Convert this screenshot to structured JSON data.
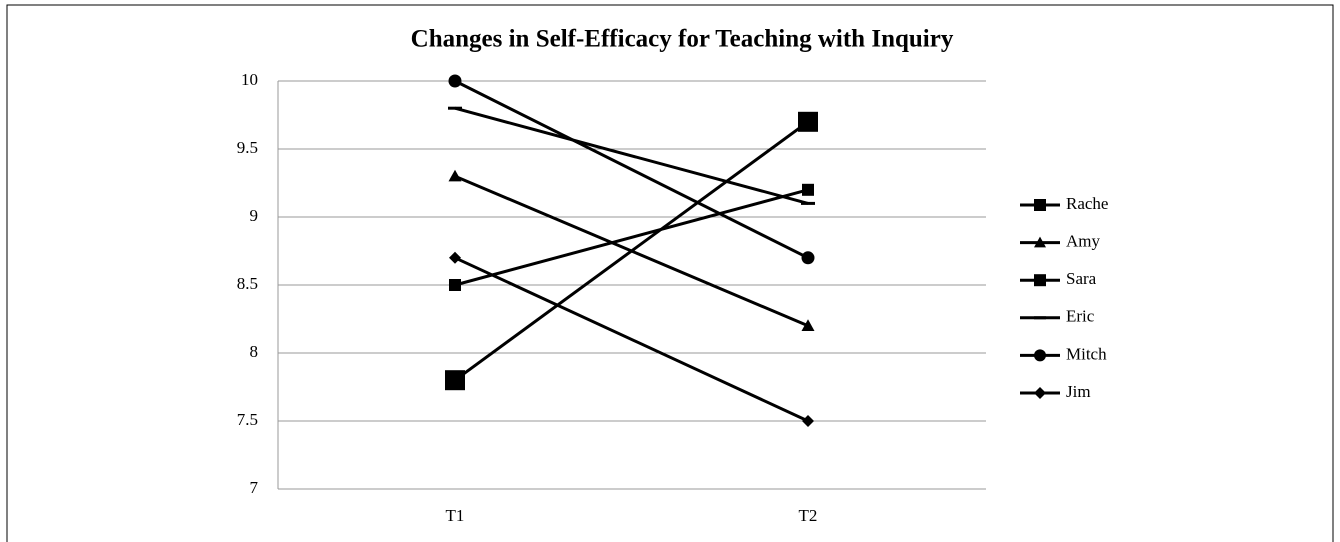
{
  "chart_data": {
    "type": "line",
    "title": "Changes in Self-Efficacy for Teaching with Inquiry",
    "categories": [
      "T1",
      "T2"
    ],
    "series": [
      {
        "name": "Rache",
        "color": "#000000",
        "marker": "square",
        "marker_size": 20,
        "values": [
          7.8,
          9.7
        ]
      },
      {
        "name": "Amy",
        "color": "#000000",
        "marker": "triangle",
        "marker_size": 13,
        "values": [
          9.3,
          8.2
        ]
      },
      {
        "name": "Sara",
        "color": "#000000",
        "marker": "square",
        "marker_size": 12,
        "values": [
          8.5,
          9.2
        ]
      },
      {
        "name": "Eric",
        "color": "#000000",
        "marker": "dash",
        "marker_size": 14,
        "values": [
          9.8,
          9.1
        ]
      },
      {
        "name": "Mitch",
        "color": "#000000",
        "marker": "circle",
        "marker_size": 13,
        "values": [
          10,
          8.7
        ]
      },
      {
        "name": "Jim",
        "color": "#000000",
        "marker": "diamond",
        "marker_size": 12,
        "values": [
          8.7,
          7.5
        ]
      }
    ],
    "ylim": [
      7,
      10
    ],
    "yticks": [
      7,
      7.5,
      8,
      8.5,
      9,
      9.5,
      10
    ],
    "grid": true,
    "legend": "right"
  }
}
